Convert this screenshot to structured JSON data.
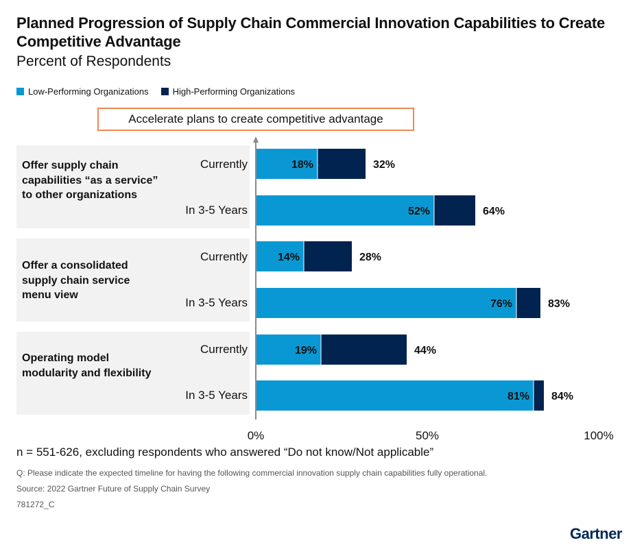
{
  "header": {
    "title": "Planned Progression of Supply Chain Commercial Innovation Capabilities to Create Competitive Advantage",
    "subtitle": "Percent of Respondents"
  },
  "colors": {
    "low": "#0a98d4",
    "high": "#00234f",
    "callout_border": "#f0894f",
    "panel": "#f2f2f2"
  },
  "callout": "Accelerate plans to create competitive advantage",
  "chart_data": {
    "type": "bar",
    "orientation": "horizontal",
    "stacked_overlay": true,
    "legend_position": "top-left",
    "xlim": [
      0,
      100
    ],
    "x_ticks": [
      "0%",
      "50%",
      "100%"
    ],
    "series": [
      {
        "name": "Low-Performing Organizations",
        "values": [
          18,
          52,
          14,
          76,
          19,
          81
        ]
      },
      {
        "name": "High-Performing Organizations",
        "values": [
          32,
          64,
          28,
          83,
          44,
          84
        ]
      }
    ],
    "groups": [
      {
        "label": "Offer supply chain capabilities “as a service” to other organizations",
        "rows": [
          {
            "label": "Currently",
            "low": 18,
            "high": 32,
            "low_label": "18%",
            "high_label": "32%"
          },
          {
            "label": "In 3-5 Years",
            "low": 52,
            "high": 64,
            "low_label": "52%",
            "high_label": "64%"
          }
        ]
      },
      {
        "label": "Offer a consolidated supply chain service menu view",
        "rows": [
          {
            "label": "Currently",
            "low": 14,
            "high": 28,
            "low_label": "14%",
            "high_label": "28%"
          },
          {
            "label": "In 3-5 Years",
            "low": 76,
            "high": 83,
            "low_label": "76%",
            "high_label": "83%"
          }
        ]
      },
      {
        "label": "Operating model modularity and flexibility",
        "rows": [
          {
            "label": "Currently",
            "low": 19,
            "high": 44,
            "low_label": "19%",
            "high_label": "44%"
          },
          {
            "label": "In 3-5 Years",
            "low": 81,
            "high": 84,
            "low_label": "81%",
            "high_label": "84%"
          }
        ]
      }
    ]
  },
  "footer": {
    "n_note": "n = 551-626, excluding respondents who answered “Do not know/Not applicable”",
    "question": "Q: Please indicate the expected timeline for having the following commercial innovation supply chain capabilities fully operational.",
    "source": "Source: 2022 Gartner Future of Supply Chain Survey",
    "id": "781272_C",
    "brand": "Gartner"
  }
}
